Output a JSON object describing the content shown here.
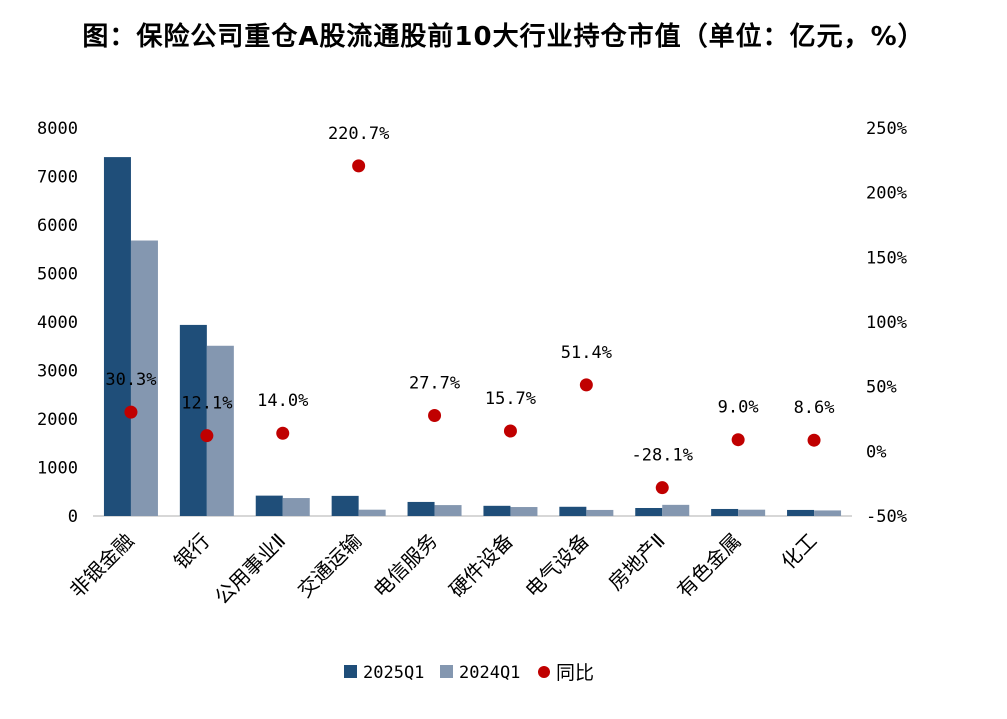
{
  "chart_data": {
    "type": "bar",
    "title": "图：保险公司重仓A股流通股前10大行业持仓市值（单位：亿元，%）",
    "categories": [
      "非银金融",
      "银行",
      "公用事业Ⅱ",
      "交通运输",
      "电信服务",
      "硬件设备",
      "电气设备",
      "房地产Ⅱ",
      "有色金属",
      "化工"
    ],
    "series": [
      {
        "name": "2025Q1",
        "type": "bar",
        "axis": "left",
        "color": "#1f4e79",
        "values": [
          7400,
          3940,
          420,
          415,
          290,
          210,
          190,
          165,
          145,
          125
        ]
      },
      {
        "name": "2024Q1",
        "type": "bar",
        "axis": "left",
        "color": "#8497b0",
        "values": [
          5680,
          3510,
          370,
          130,
          225,
          185,
          125,
          230,
          130,
          115
        ]
      },
      {
        "name": "同比",
        "type": "scatter",
        "axis": "right",
        "color": "#c00000",
        "values": [
          30.3,
          12.1,
          14.0,
          220.7,
          27.7,
          15.7,
          51.4,
          -28.1,
          9.0,
          8.6
        ],
        "labels": [
          "30.3%",
          "12.1%",
          "14.0%",
          "220.7%",
          "27.7%",
          "15.7%",
          "51.4%",
          "-28.1%",
          "9.0%",
          "8.6%"
        ]
      }
    ],
    "ylim": [
      0,
      8000
    ],
    "yticks": [
      "0",
      "1000",
      "2000",
      "3000",
      "4000",
      "5000",
      "6000",
      "7000",
      "8000"
    ],
    "y2lim": [
      -50,
      250
    ],
    "y2ticks": [
      "-50%",
      "0%",
      "50%",
      "100%",
      "150%",
      "200%",
      "250%"
    ],
    "xlabel": "",
    "ylabel": "",
    "grid": false,
    "legend_position": "bottom"
  }
}
